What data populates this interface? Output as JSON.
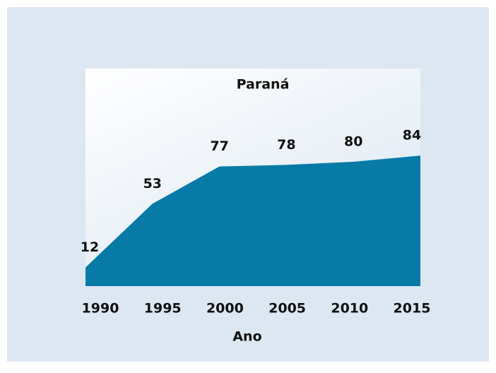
{
  "chart_data": {
    "type": "area",
    "title": "Paraná",
    "x_label": "Ano",
    "x": [
      1990,
      1995,
      2000,
      2005,
      2010,
      2015
    ],
    "values": [
      12,
      53,
      77,
      78,
      80,
      84
    ],
    "color": "#077ba6",
    "xlim": [
      1990,
      2015
    ],
    "xticks": [
      1990,
      1995,
      2000,
      2005,
      2010,
      2015
    ],
    "ylim": [
      0,
      140
    ]
  }
}
